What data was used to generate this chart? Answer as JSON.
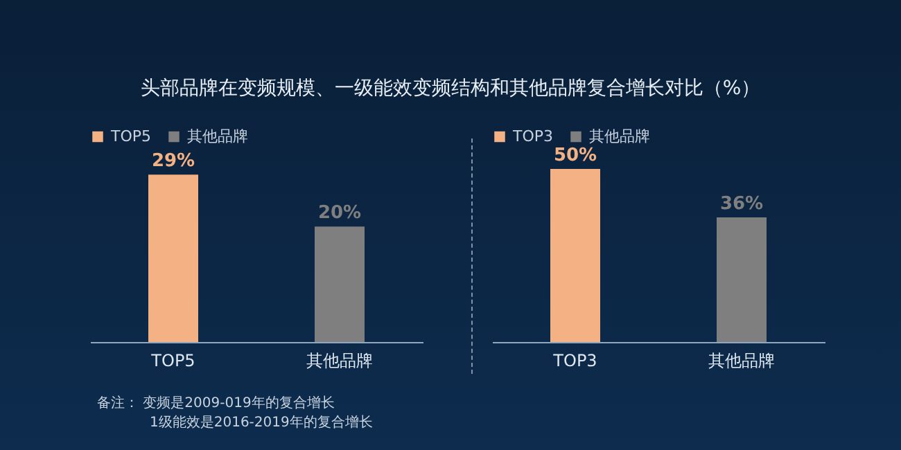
{
  "chart_data": [
    {
      "type": "bar",
      "title": "头部品牌在变频规模、一级能效变频结构和其他品牌复合增长对比（%）",
      "categories": [
        "TOP5",
        "其他品牌"
      ],
      "series": [
        {
          "name": "TOP5",
          "color": "#f4b183",
          "values": [
            29,
            null
          ],
          "value_labels": [
            "29%",
            null
          ]
        },
        {
          "name": "其他品牌",
          "color": "#7f7f7f",
          "values": [
            null,
            20
          ],
          "value_labels": [
            null,
            "20%"
          ]
        }
      ],
      "legend": "top",
      "tick_labels": "x",
      "annotations": [
        "备注：  变频是2009-019年的复合增长",
        "1级能效是2016-2019年的复合增长"
      ]
    },
    {
      "type": "bar",
      "categories": [
        "TOP3",
        "其他品牌"
      ],
      "series": [
        {
          "name": "TOP3",
          "color": "#f4b183",
          "values": [
            50,
            null
          ],
          "value_labels": [
            "50%",
            null
          ]
        },
        {
          "name": "其他品牌",
          "color": "#7f7f7f",
          "values": [
            null,
            36
          ],
          "value_labels": [
            null,
            "36%"
          ]
        }
      ],
      "legend": "top",
      "tick_labels": "x"
    }
  ]
}
